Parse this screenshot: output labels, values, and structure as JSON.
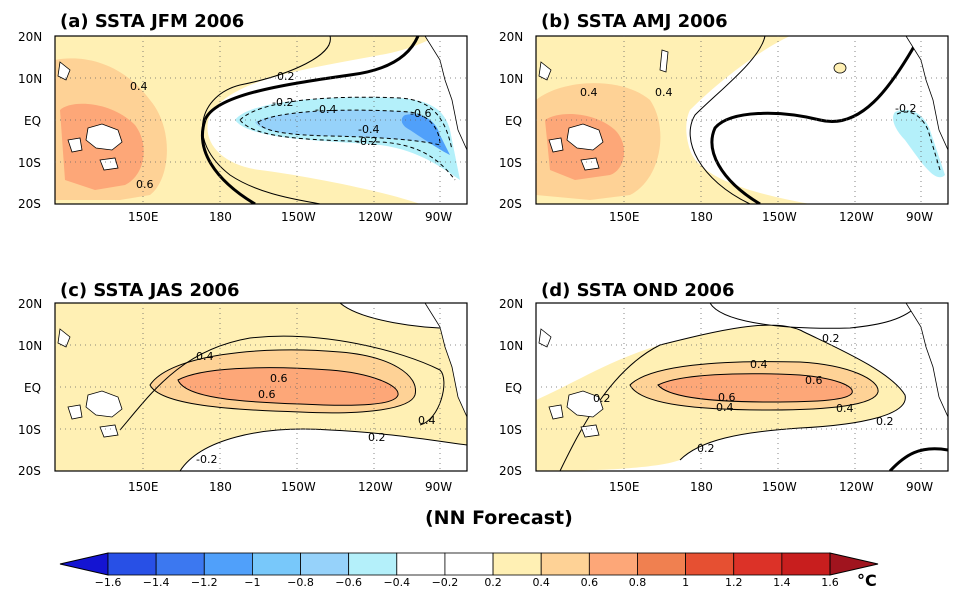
{
  "figure": {
    "caption": "(NN Forecast)",
    "lat_labels": [
      "20N",
      "10N",
      "EQ",
      "10S",
      "20S"
    ],
    "lon_labels": [
      "150E",
      "180",
      "150W",
      "120W",
      "90W"
    ]
  },
  "panels": [
    {
      "id": "a",
      "title": "(a) SSTA JFM 2006",
      "contour_labels": [
        "0.4",
        "0.6",
        "0.2",
        "-0.2",
        "-0.4",
        "-0.6",
        "-0.4",
        "-0.2"
      ]
    },
    {
      "id": "b",
      "title": "(b) SSTA AMJ 2006",
      "contour_labels": [
        "0.4",
        "0.4",
        "-0.2"
      ]
    },
    {
      "id": "c",
      "title": "(c) SSTA JAS 2006",
      "contour_labels": [
        "0.4",
        "0.6",
        "0.6",
        "0.2",
        "0.4",
        "-0.2"
      ]
    },
    {
      "id": "d",
      "title": "(d) SSTA OND 2006",
      "contour_labels": [
        "0.2",
        "0.4",
        "0.6",
        "0.6",
        "0.4",
        "0.4",
        "0.2",
        "0.2",
        "0.2"
      ]
    }
  ],
  "colorbar": {
    "ticks": [
      "-1.6",
      "-1.4",
      "-1.2",
      "-1",
      "-0.8",
      "-0.6",
      "-0.4",
      "-0.2",
      "0.2",
      "0.4",
      "0.6",
      "0.8",
      "1",
      "1.2",
      "1.4",
      "1.6"
    ],
    "colors": [
      "#1414d2",
      "#2850e6",
      "#3c78f0",
      "#50a0fa",
      "#78c8fa",
      "#96d2fa",
      "#b4f0fa",
      "#ffffff",
      "#ffffff",
      "#fff0b4",
      "#fed296",
      "#fda778",
      "#f08050",
      "#e65032",
      "#dc3228",
      "#c81e1e",
      "#a0141e"
    ],
    "unit": "°C"
  }
}
